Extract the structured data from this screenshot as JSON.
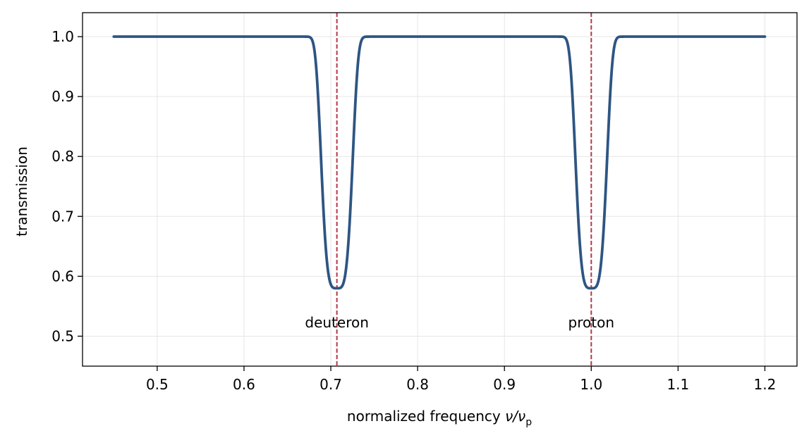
{
  "chart_data": {
    "type": "line",
    "title": "",
    "xlabel": {
      "text": "normalized frequency ",
      "symbol": "ν/ν",
      "subscript": "p"
    },
    "ylabel": "transmission",
    "xlim": [
      0.414,
      1.237
    ],
    "ylim": [
      0.45,
      1.04
    ],
    "xticks": [
      0.5,
      0.6,
      0.7,
      0.8,
      0.9,
      1.0,
      1.1,
      1.2
    ],
    "xtick_labels": [
      "0.5",
      "0.6",
      "0.7",
      "0.8",
      "0.9",
      "1.0",
      "1.1",
      "1.2"
    ],
    "yticks": [
      0.5,
      0.6,
      0.7,
      0.8,
      0.9,
      1.0
    ],
    "ytick_labels": [
      "0.5",
      "0.6",
      "0.7",
      "0.8",
      "0.9",
      "1.0"
    ],
    "grid": true,
    "series": [
      {
        "color": "#2e5583",
        "x_range": [
          0.45,
          1.2
        ],
        "baseline": 1.0,
        "dips": [
          {
            "center": 0.707,
            "min": 0.58
          },
          {
            "center": 1.0,
            "min": 0.58
          }
        ]
      }
    ],
    "reference_lines": [
      {
        "x": 0.707,
        "label": "deuteron",
        "label_y": 0.523,
        "color": "#b5384a",
        "style": "dashed"
      },
      {
        "x": 1.0,
        "label": "proton",
        "label_y": 0.523,
        "color": "#b5384a",
        "style": "dashed"
      }
    ]
  }
}
